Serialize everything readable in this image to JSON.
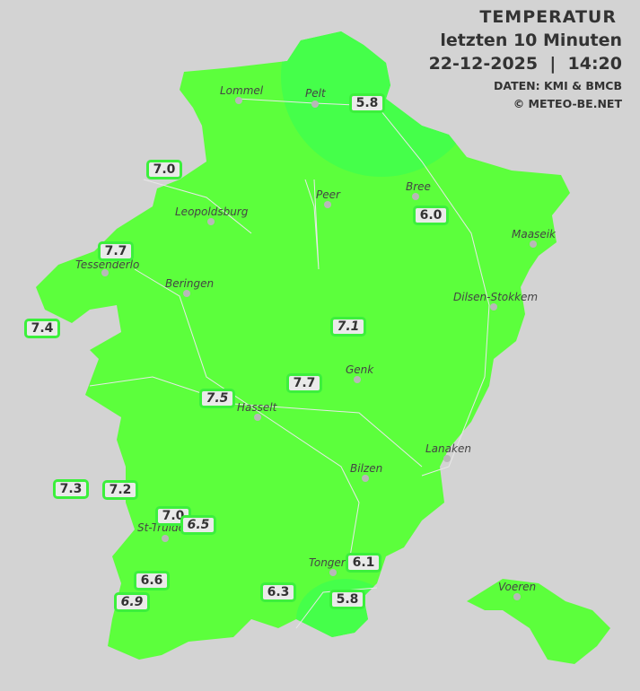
{
  "header": {
    "title": "TEMPERATUR",
    "subtitle": "letzten 10 Minuten",
    "datetime": "22-12-2025  |  14:20",
    "source": "DATEN: KMI & BMCB",
    "copyright": "© METEO-BE.NET"
  },
  "colors": {
    "map_fill": "#5cff3c",
    "cold_zone": "#45ff4a",
    "label_border": "#3cf03c",
    "background": "#d3d3d3"
  },
  "cities": [
    {
      "name": "Lommel"
    },
    {
      "name": "Pelt"
    },
    {
      "name": "Peer"
    },
    {
      "name": "Bree"
    },
    {
      "name": "Leopoldsburg"
    },
    {
      "name": "Maaseik"
    },
    {
      "name": "Tessenderlo"
    },
    {
      "name": "Beringen"
    },
    {
      "name": "Dilsen-Stokkem"
    },
    {
      "name": "Genk"
    },
    {
      "name": "Hasselt"
    },
    {
      "name": "Lanaken"
    },
    {
      "name": "Bilzen"
    },
    {
      "name": "St-Truiden"
    },
    {
      "name": "Tongeren"
    },
    {
      "name": "Voeren"
    }
  ],
  "readings": [
    "5.8",
    "7.0",
    "6.0",
    "7.7",
    "7.4",
    "7.1",
    "7.7",
    "7.5",
    "7.3",
    "7.2",
    "7.0",
    "6.5",
    "6.1",
    "6.6",
    "6.9",
    "6.3",
    "5.8"
  ]
}
